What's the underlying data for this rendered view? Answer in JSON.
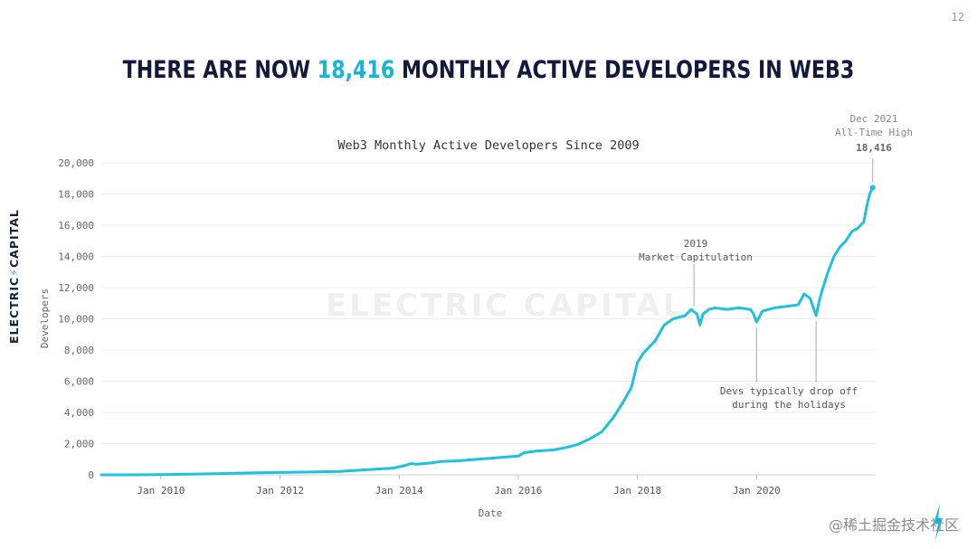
{
  "page_number": "12",
  "headline": {
    "prefix": "There are now ",
    "highlight": "18,416",
    "suffix": " monthly active developers in Web3"
  },
  "brand": {
    "logo_text_left": "ELECTRIC",
    "logo_text_right": "CAPITAL",
    "watermark": "ELECTRIC CAPITAL",
    "accent_color": "#19b3d9",
    "ink_color": "#13193a"
  },
  "corner_watermark": "@稀土掘金技术社区",
  "chart_data": {
    "type": "line",
    "title": "Web3 Monthly Active Developers Since 2009",
    "xlabel": "Date",
    "ylabel": "Developers",
    "xlim": [
      2009.0,
      2022.0
    ],
    "ylim": [
      0,
      20000
    ],
    "yticks": [
      0,
      2000,
      4000,
      6000,
      8000,
      10000,
      12000,
      14000,
      16000,
      18000,
      20000
    ],
    "ytick_labels": [
      "0",
      "2,000",
      "4,000",
      "6,000",
      "8,000",
      "10,000",
      "12,000",
      "14,000",
      "16,000",
      "18,000",
      "20,000"
    ],
    "xticks": [
      2010,
      2012,
      2014,
      2016,
      2018,
      2020
    ],
    "xtick_labels": [
      "Jan 2010",
      "Jan 2012",
      "Jan 2014",
      "Jan 2016",
      "Jan 2018",
      "Jan 2020"
    ],
    "grid": "horizontal",
    "line_color": "#1fc1e0",
    "series": [
      {
        "name": "",
        "x": [
          2009.0,
          2009.5,
          2010.0,
          2010.5,
          2011.0,
          2011.5,
          2012.0,
          2012.5,
          2013.0,
          2013.3,
          2013.6,
          2013.9,
          2014.1,
          2014.2,
          2014.3,
          2014.5,
          2014.7,
          2015.0,
          2015.2,
          2015.5,
          2015.8,
          2016.0,
          2016.1,
          2016.3,
          2016.6,
          2016.8,
          2017.0,
          2017.2,
          2017.4,
          2017.6,
          2017.75,
          2017.9,
          2018.0,
          2018.1,
          2018.3,
          2018.45,
          2018.6,
          2018.8,
          2018.9,
          2019.0,
          2019.05,
          2019.1,
          2019.2,
          2019.3,
          2019.5,
          2019.7,
          2019.9,
          2019.95,
          2020.0,
          2020.1,
          2020.3,
          2020.5,
          2020.7,
          2020.8,
          2020.9,
          2021.0,
          2021.05,
          2021.1,
          2021.2,
          2021.3,
          2021.4,
          2021.5,
          2021.6,
          2021.7,
          2021.8,
          2021.85,
          2021.9,
          2021.95
        ],
        "y": [
          0,
          0,
          20,
          40,
          80,
          120,
          150,
          180,
          220,
          290,
          360,
          430,
          600,
          720,
          680,
          750,
          850,
          900,
          960,
          1050,
          1150,
          1200,
          1420,
          1520,
          1600,
          1750,
          1950,
          2300,
          2750,
          3700,
          4600,
          5600,
          7200,
          7800,
          8600,
          9600,
          10000,
          10200,
          10600,
          10300,
          9600,
          10300,
          10600,
          10700,
          10600,
          10700,
          10600,
          10300,
          9800,
          10500,
          10700,
          10800,
          10900,
          11600,
          11300,
          10200,
          11100,
          11800,
          13000,
          14000,
          14600,
          15000,
          15600,
          15800,
          16200,
          17200,
          18000,
          18416
        ]
      }
    ],
    "annotations": [
      {
        "id": "ath",
        "lines": [
          "Dec 2021",
          "All-Time High"
        ],
        "value": "18,416",
        "x": 2021.95,
        "y": 18416
      },
      {
        "id": "capitulation",
        "lines": [
          "2019",
          "Market Capitulation"
        ],
        "x": 2018.95,
        "y": 10600
      },
      {
        "id": "holidays",
        "lines": [
          "Devs typically drop off",
          "during the holidays"
        ],
        "x": [
          2020.0,
          2021.0
        ],
        "y": [
          9800,
          10200
        ]
      }
    ]
  }
}
